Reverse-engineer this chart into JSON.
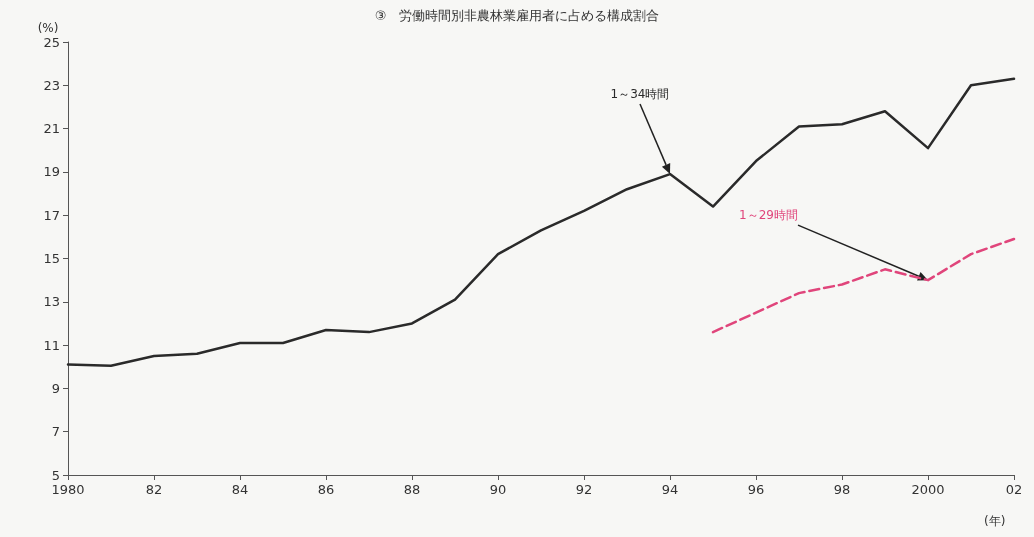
{
  "chart_data": {
    "type": "line",
    "title": "③　労働時間別非農林業雇用者に占める構成割合",
    "ylabel": "(%)",
    "xlabel": "(年)",
    "xlim": [
      1980,
      2002
    ],
    "xticks": [
      1980,
      {
        "value": 1982,
        "label": "82"
      },
      {
        "value": 1984,
        "label": "84"
      },
      {
        "value": 1986,
        "label": "86"
      },
      {
        "value": 1988,
        "label": "88"
      },
      {
        "value": 1990,
        "label": "90"
      },
      {
        "value": 1992,
        "label": "92"
      },
      {
        "value": 1994,
        "label": "94"
      },
      {
        "value": 1996,
        "label": "96"
      },
      {
        "value": 1998,
        "label": "98"
      },
      2000,
      {
        "value": 2002,
        "label": "02"
      }
    ],
    "ylim": [
      5,
      25
    ],
    "yticks": [
      5,
      7,
      9,
      11,
      13,
      15,
      17,
      19,
      21,
      23,
      25
    ],
    "series": [
      {
        "name": "1～34時間",
        "color": "#2a2a2a",
        "line_style": "solid",
        "x": [
          1980,
          1981,
          1982,
          1983,
          1984,
          1985,
          1986,
          1987,
          1988,
          1989,
          1990,
          1991,
          1992,
          1993,
          1994,
          1995,
          1996,
          1997,
          1998,
          1999,
          2000,
          2001,
          2002
        ],
        "values": [
          10.1,
          10.05,
          10.5,
          10.6,
          11.1,
          11.1,
          11.7,
          11.6,
          12.0,
          13.1,
          15.2,
          16.3,
          17.2,
          18.2,
          18.9,
          17.4,
          19.5,
          21.1,
          21.2,
          21.8,
          20.1,
          23.0,
          23.3
        ]
      },
      {
        "name": "1～29時間",
        "color": "#e0457b",
        "line_style": "dashed",
        "x": [
          1995,
          1996,
          1997,
          1998,
          1999,
          2000,
          2001,
          2002
        ],
        "values": [
          11.6,
          12.5,
          13.4,
          13.8,
          14.5,
          14.0,
          15.2,
          15.9
        ]
      }
    ],
    "legend": false,
    "grid": false,
    "marker": "none"
  }
}
